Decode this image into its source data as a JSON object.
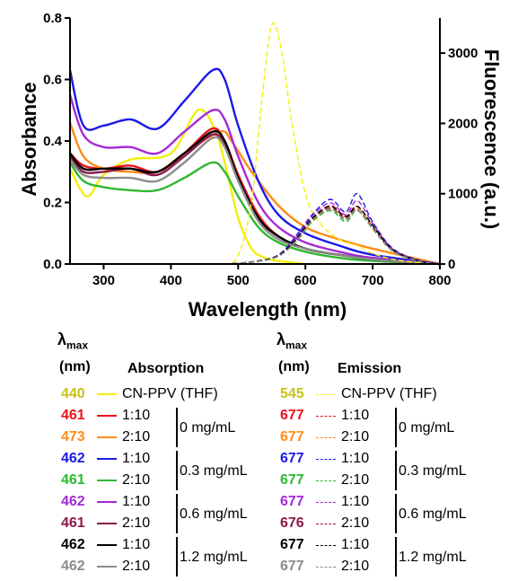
{
  "chart_data": {
    "type": "line",
    "xlabel": "Wavelength (nm)",
    "ylabel_left": "Absorbance",
    "ylabel_right": "Fluorescence (a.u.)",
    "xlim": [
      250,
      800
    ],
    "ylim_left": [
      0,
      0.8
    ],
    "ylim_right": [
      0,
      3500
    ],
    "x_ticks": [
      "300",
      "400",
      "500",
      "600",
      "700",
      "800"
    ],
    "y_left_ticks": [
      "0.0",
      "0.2",
      "0.4",
      "0.6",
      "0.8"
    ],
    "y_right_ticks": [
      "0",
      "1000",
      "2000",
      "3000"
    ],
    "absorption_series": [
      {
        "color": "#f2ef0c",
        "x": [
          250,
          275,
          300,
          340,
          400,
          440,
          465,
          480,
          500,
          520,
          540,
          560,
          580,
          600
        ],
        "y": [
          0.31,
          0.22,
          0.29,
          0.34,
          0.36,
          0.5,
          0.44,
          0.33,
          0.15,
          0.05,
          0.02,
          0.01,
          0.005,
          0.0
        ]
      },
      {
        "color": "#e8141e",
        "x": [
          250,
          270,
          300,
          340,
          380,
          420,
          461,
          480,
          500,
          530,
          560,
          600,
          650,
          700,
          800
        ],
        "y": [
          0.36,
          0.32,
          0.31,
          0.32,
          0.3,
          0.36,
          0.44,
          0.4,
          0.29,
          0.16,
          0.09,
          0.05,
          0.03,
          0.015,
          0.0
        ]
      },
      {
        "color": "#ff8c1a",
        "x": [
          250,
          270,
          300,
          340,
          380,
          420,
          473,
          490,
          520,
          560,
          600,
          650,
          700,
          800
        ],
        "y": [
          0.46,
          0.35,
          0.31,
          0.3,
          0.3,
          0.36,
          0.43,
          0.4,
          0.3,
          0.19,
          0.12,
          0.08,
          0.05,
          0.0
        ]
      },
      {
        "color": "#1a1ae8",
        "x": [
          250,
          270,
          300,
          340,
          380,
          420,
          462,
          480,
          500,
          530,
          560,
          600,
          650,
          700,
          800
        ],
        "y": [
          0.63,
          0.45,
          0.45,
          0.47,
          0.44,
          0.53,
          0.63,
          0.6,
          0.45,
          0.27,
          0.16,
          0.1,
          0.06,
          0.03,
          0.0
        ]
      },
      {
        "color": "#2fb82f",
        "x": [
          250,
          270,
          300,
          340,
          380,
          420,
          461,
          480,
          500,
          530,
          560,
          600,
          650,
          700,
          800
        ],
        "y": [
          0.33,
          0.27,
          0.25,
          0.24,
          0.24,
          0.28,
          0.33,
          0.3,
          0.22,
          0.12,
          0.07,
          0.04,
          0.02,
          0.01,
          0.0
        ]
      },
      {
        "color": "#a52ad6",
        "x": [
          250,
          270,
          300,
          340,
          380,
          420,
          462,
          480,
          500,
          530,
          560,
          600,
          650,
          700,
          800
        ],
        "y": [
          0.55,
          0.42,
          0.38,
          0.38,
          0.36,
          0.43,
          0.5,
          0.47,
          0.35,
          0.2,
          0.12,
          0.07,
          0.04,
          0.02,
          0.0
        ]
      },
      {
        "color": "#8c1a4a",
        "x": [
          250,
          270,
          300,
          340,
          380,
          420,
          461,
          480,
          500,
          530,
          560,
          600,
          650,
          700,
          800
        ],
        "y": [
          0.35,
          0.3,
          0.3,
          0.31,
          0.29,
          0.35,
          0.42,
          0.39,
          0.28,
          0.15,
          0.09,
          0.05,
          0.03,
          0.015,
          0.0
        ]
      },
      {
        "color": "#000000",
        "x": [
          250,
          270,
          300,
          340,
          380,
          420,
          462,
          480,
          500,
          530,
          560,
          600,
          650,
          700,
          800
        ],
        "y": [
          0.36,
          0.31,
          0.31,
          0.31,
          0.3,
          0.36,
          0.43,
          0.4,
          0.28,
          0.15,
          0.09,
          0.05,
          0.03,
          0.015,
          0.0
        ]
      },
      {
        "color": "#8c8c8c",
        "x": [
          250,
          270,
          300,
          340,
          380,
          420,
          462,
          480,
          500,
          530,
          560,
          600,
          650,
          700,
          800
        ],
        "y": [
          0.34,
          0.29,
          0.28,
          0.28,
          0.27,
          0.33,
          0.41,
          0.38,
          0.27,
          0.14,
          0.08,
          0.05,
          0.03,
          0.015,
          0.0
        ]
      }
    ],
    "emission_series": [
      {
        "color": "#f2ef0c",
        "x": [
          480,
          500,
          520,
          535,
          550,
          565,
          580,
          600,
          620,
          650,
          680,
          700,
          740,
          800
        ],
        "y": [
          0,
          120,
          900,
          2300,
          3400,
          3000,
          2000,
          1000,
          600,
          350,
          250,
          150,
          50,
          0
        ]
      },
      {
        "color": "#e8141e",
        "x": [
          480,
          520,
          560,
          590,
          610,
          637,
          660,
          677,
          700,
          730,
          770,
          800
        ],
        "y": [
          0,
          30,
          120,
          400,
          650,
          830,
          680,
          820,
          550,
          200,
          40,
          0
        ]
      },
      {
        "color": "#ff8c1a",
        "x": [
          480,
          520,
          560,
          590,
          610,
          637,
          660,
          677,
          700,
          730,
          770,
          800
        ],
        "y": [
          0,
          30,
          120,
          390,
          640,
          800,
          660,
          800,
          540,
          190,
          40,
          0
        ]
      },
      {
        "color": "#1a1ae8",
        "x": [
          480,
          520,
          560,
          590,
          610,
          637,
          660,
          677,
          700,
          730,
          770,
          800
        ],
        "y": [
          0,
          30,
          130,
          450,
          700,
          920,
          740,
          1000,
          600,
          220,
          50,
          0
        ]
      },
      {
        "color": "#2fb82f",
        "x": [
          480,
          520,
          560,
          590,
          610,
          637,
          660,
          677,
          700,
          730,
          770,
          800
        ],
        "y": [
          0,
          25,
          110,
          360,
          600,
          760,
          600,
          760,
          500,
          180,
          35,
          0
        ]
      },
      {
        "color": "#a52ad6",
        "x": [
          480,
          520,
          560,
          590,
          610,
          637,
          660,
          677,
          700,
          730,
          770,
          800
        ],
        "y": [
          0,
          30,
          125,
          420,
          680,
          870,
          700,
          900,
          580,
          210,
          45,
          0
        ]
      },
      {
        "color": "#8c1a4a",
        "x": [
          480,
          520,
          560,
          590,
          610,
          637,
          660,
          676,
          700,
          730,
          770,
          800
        ],
        "y": [
          0,
          28,
          115,
          380,
          630,
          790,
          640,
          780,
          520,
          190,
          38,
          0
        ]
      },
      {
        "color": "#000000",
        "x": [
          480,
          520,
          560,
          590,
          610,
          637,
          660,
          677,
          700,
          730,
          770,
          800
        ],
        "y": [
          0,
          30,
          120,
          400,
          650,
          820,
          670,
          820,
          550,
          200,
          40,
          0
        ]
      },
      {
        "color": "#8c8c8c",
        "x": [
          480,
          520,
          560,
          590,
          610,
          637,
          660,
          677,
          700,
          730,
          770,
          800
        ],
        "y": [
          0,
          27,
          112,
          370,
          620,
          780,
          630,
          770,
          510,
          185,
          36,
          0
        ]
      }
    ]
  },
  "legend": {
    "lambda": "λ",
    "max": "max",
    "nm": "(nm)",
    "absorption_title": "Absorption",
    "emission_title": "Emission",
    "absorption_rows": [
      {
        "num": "440",
        "color": "#c8c21a",
        "line": "#f2ef0c",
        "ratio": "CN-PPV (THF)"
      },
      {
        "num": "461",
        "color": "#e8141e",
        "line": "#e8141e",
        "ratio": "1:10"
      },
      {
        "num": "473",
        "color": "#ff8c1a",
        "line": "#ff8c1a",
        "ratio": "2:10"
      },
      {
        "num": "462",
        "color": "#1a1ae8",
        "line": "#1a1ae8",
        "ratio": "1:10"
      },
      {
        "num": "461",
        "color": "#2fb82f",
        "line": "#2fb82f",
        "ratio": "2:10"
      },
      {
        "num": "462",
        "color": "#a52ad6",
        "line": "#a52ad6",
        "ratio": "1:10"
      },
      {
        "num": "461",
        "color": "#8c1a4a",
        "line": "#8c1a4a",
        "ratio": "2:10"
      },
      {
        "num": "462",
        "color": "#000000",
        "line": "#000000",
        "ratio": "1:10"
      },
      {
        "num": "462",
        "color": "#8c8c8c",
        "line": "#8c8c8c",
        "ratio": "2:10"
      }
    ],
    "emission_rows": [
      {
        "num": "545",
        "color": "#c8c21a",
        "line": "#f2ef0c",
        "ratio": "CN-PPV (THF)"
      },
      {
        "num": "677",
        "color": "#e8141e",
        "line": "#e8141e",
        "ratio": "1:10"
      },
      {
        "num": "677",
        "color": "#ff8c1a",
        "line": "#ff8c1a",
        "ratio": "2:10"
      },
      {
        "num": "677",
        "color": "#1a1ae8",
        "line": "#1a1ae8",
        "ratio": "1:10"
      },
      {
        "num": "677",
        "color": "#2fb82f",
        "line": "#2fb82f",
        "ratio": "2:10"
      },
      {
        "num": "677",
        "color": "#a52ad6",
        "line": "#a52ad6",
        "ratio": "1:10"
      },
      {
        "num": "676",
        "color": "#8c1a4a",
        "line": "#8c1a4a",
        "ratio": "2:10"
      },
      {
        "num": "677",
        "color": "#000000",
        "line": "#000000",
        "ratio": "1:10"
      },
      {
        "num": "677",
        "color": "#8c8c8c",
        "line": "#8c8c8c",
        "ratio": "2:10"
      }
    ],
    "concentrations": [
      "0 mg/mL",
      "0.3 mg/mL",
      "0.6 mg/mL",
      "1.2 mg/mL"
    ]
  }
}
